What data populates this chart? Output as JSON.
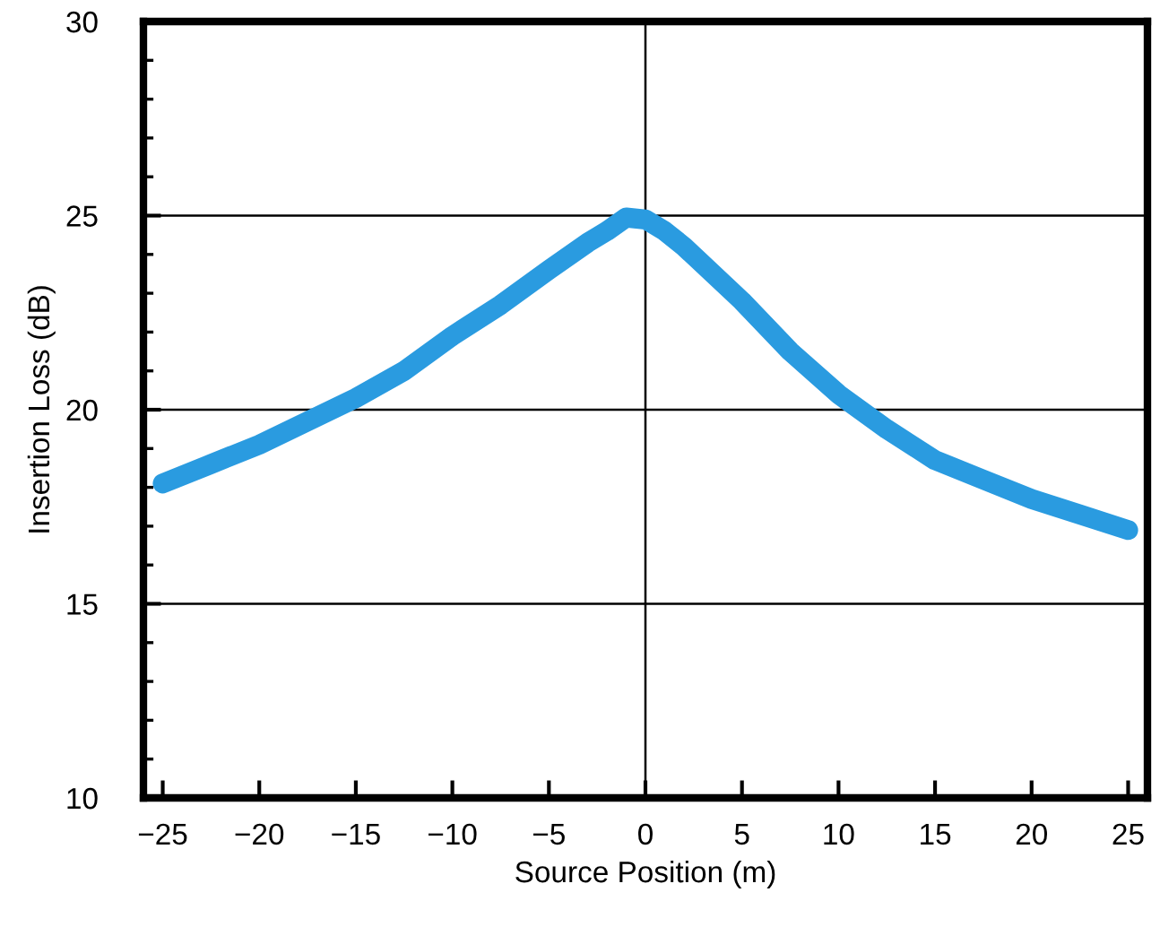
{
  "chart_data": {
    "type": "line",
    "xlabel": "Source Position (m)",
    "ylabel": "Insertion Loss (dB)",
    "x": [
      -25,
      -22.5,
      -20,
      -17.5,
      -15,
      -12.5,
      -10,
      -7.5,
      -5,
      -3,
      -2,
      -1,
      0,
      1,
      2,
      5,
      7.5,
      10,
      12.5,
      15,
      17.5,
      20,
      22.5,
      25
    ],
    "series": [
      {
        "color": "#2a9be0",
        "values": [
          18.1,
          18.6,
          19.1,
          19.7,
          20.3,
          21.0,
          21.9,
          22.7,
          23.6,
          24.3,
          24.6,
          24.95,
          24.9,
          24.6,
          24.2,
          22.8,
          21.5,
          20.4,
          19.5,
          18.7,
          18.2,
          17.7,
          17.3,
          16.9
        ]
      }
    ],
    "xlim": [
      -26,
      26
    ],
    "xticks": [
      {
        "value": -25,
        "label": "−25"
      },
      {
        "value": -20,
        "label": "−20"
      },
      {
        "value": -15,
        "label": "−15"
      },
      {
        "value": -10,
        "label": "−10"
      },
      {
        "value": -5,
        "label": "−5"
      },
      0,
      5,
      10,
      15,
      20,
      25
    ],
    "ylim": [
      10,
      30
    ],
    "yticks": [
      10,
      15,
      20,
      25,
      30
    ],
    "grid": "y",
    "ref_lines": [
      {
        "axis": "x",
        "value": 0,
        "label": null
      }
    ],
    "line_style": "solid"
  }
}
